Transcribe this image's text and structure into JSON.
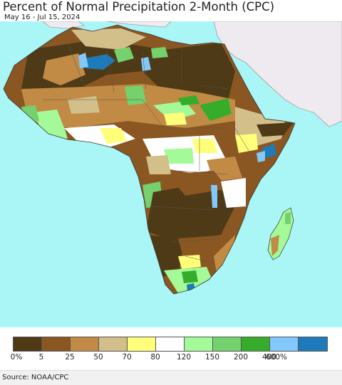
{
  "header": {
    "title": "Percent of Normal Precipitation 2-Month (CPC)",
    "date_range": "May 16 - Jul 15, 2024"
  },
  "map": {
    "region": "Africa",
    "ocean_color": "#aaf5f5",
    "outside_land_color": "#efeaf0"
  },
  "legend": {
    "colors": [
      "#4e3a17",
      "#8a5722",
      "#c18b45",
      "#d3bf8a",
      "#ffff7a",
      "#ffffff",
      "#a4fa98",
      "#74d16e",
      "#35ad2a",
      "#82c8fa",
      "#1e7ab8"
    ],
    "labels": [
      "0%",
      "5",
      "25",
      "50",
      "70",
      "80",
      "120",
      "150",
      "200",
      "400",
      "600%"
    ]
  },
  "footer": {
    "source": "Source: NOAA/CPC"
  }
}
